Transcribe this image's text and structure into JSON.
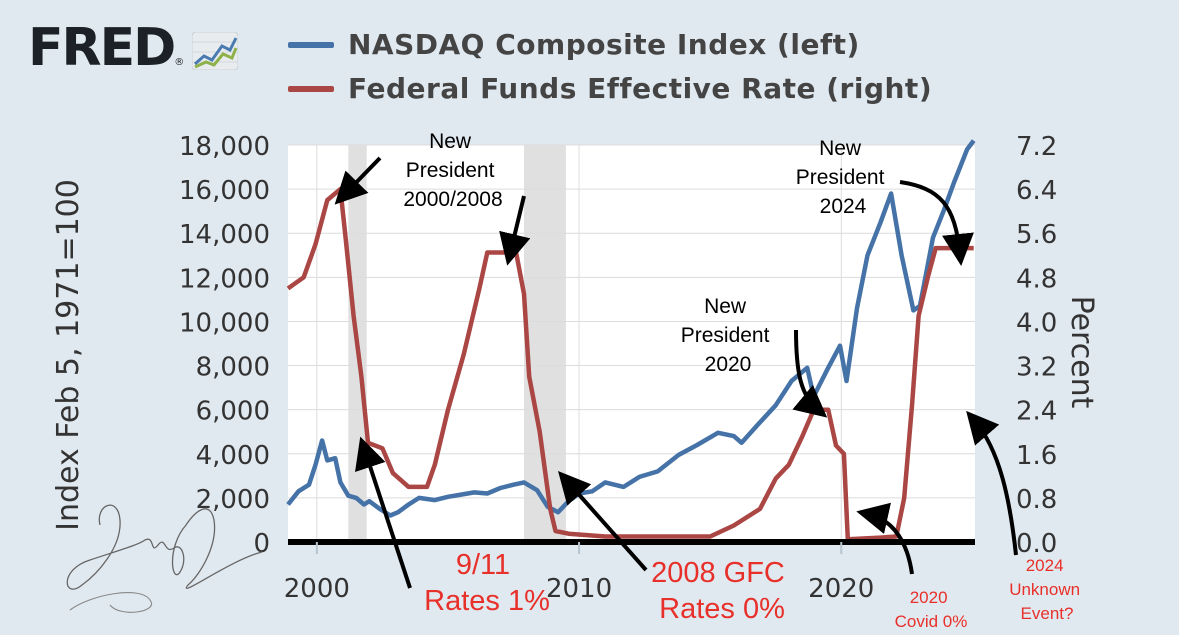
{
  "logo": {
    "text": "FRED",
    "registered": "®"
  },
  "colors": {
    "nasdaq": "#4572a7",
    "fedfunds": "#aa4643",
    "recession": "#e0e0e0",
    "annotation_red": "#e8302a"
  },
  "chart_data": {
    "type": "line",
    "x_range": [
      1998.9,
      2025.1
    ],
    "x_ticks": [
      "2000",
      "2010",
      "2020"
    ],
    "left_axis": {
      "label": "Index Feb 5, 1971=100",
      "range": [
        0,
        18000
      ],
      "ticks": [
        "18,000",
        "16,000",
        "14,000",
        "12,000",
        "10,000",
        "8,000",
        "6,000",
        "4,000",
        "2,000",
        "0"
      ]
    },
    "right_axis": {
      "label": "Percent",
      "range": [
        0,
        7.2
      ],
      "ticks": [
        "7.2",
        "6.4",
        "5.6",
        "4.8",
        "4.0",
        "3.2",
        "2.4",
        "1.6",
        "0.8",
        "0.0"
      ]
    },
    "recessions": [
      [
        2001.2,
        2001.9
      ],
      [
        2007.9,
        2009.5
      ]
    ],
    "series": [
      {
        "name": "NASDAQ Composite Index (left)",
        "axis": "left",
        "points": [
          [
            1998.9,
            1700
          ],
          [
            1999.3,
            2300
          ],
          [
            1999.7,
            2600
          ],
          [
            1999.95,
            3500
          ],
          [
            2000.2,
            4600
          ],
          [
            2000.4,
            3700
          ],
          [
            2000.7,
            3800
          ],
          [
            2000.9,
            2700
          ],
          [
            2001.2,
            2100
          ],
          [
            2001.5,
            2000
          ],
          [
            2001.8,
            1700
          ],
          [
            2002.0,
            1850
          ],
          [
            2002.4,
            1500
          ],
          [
            2002.8,
            1200
          ],
          [
            2003.1,
            1350
          ],
          [
            2003.5,
            1700
          ],
          [
            2003.9,
            2000
          ],
          [
            2004.5,
            1900
          ],
          [
            2005.0,
            2050
          ],
          [
            2005.5,
            2150
          ],
          [
            2006.0,
            2250
          ],
          [
            2006.5,
            2200
          ],
          [
            2007.0,
            2450
          ],
          [
            2007.5,
            2600
          ],
          [
            2007.9,
            2700
          ],
          [
            2008.4,
            2350
          ],
          [
            2008.8,
            1600
          ],
          [
            2009.2,
            1350
          ],
          [
            2009.6,
            1850
          ],
          [
            2010.0,
            2200
          ],
          [
            2010.5,
            2300
          ],
          [
            2011.0,
            2700
          ],
          [
            2011.7,
            2500
          ],
          [
            2012.3,
            2950
          ],
          [
            2013.0,
            3200
          ],
          [
            2013.8,
            3950
          ],
          [
            2014.5,
            4400
          ],
          [
            2015.3,
            4950
          ],
          [
            2015.9,
            4800
          ],
          [
            2016.2,
            4500
          ],
          [
            2016.8,
            5300
          ],
          [
            2017.5,
            6200
          ],
          [
            2018.1,
            7300
          ],
          [
            2018.7,
            7900
          ],
          [
            2018.95,
            6600
          ],
          [
            2019.5,
            7900
          ],
          [
            2019.95,
            8900
          ],
          [
            2020.2,
            7300
          ],
          [
            2020.6,
            10600
          ],
          [
            2021.0,
            13000
          ],
          [
            2021.5,
            14500
          ],
          [
            2021.9,
            15800
          ],
          [
            2022.3,
            13000
          ],
          [
            2022.75,
            10500
          ],
          [
            2023.0,
            10700
          ],
          [
            2023.5,
            13800
          ],
          [
            2023.9,
            15000
          ],
          [
            2024.3,
            16300
          ],
          [
            2024.8,
            17800
          ],
          [
            2025.05,
            18200
          ]
        ]
      },
      {
        "name": "Federal Funds Effective Rate (right)",
        "axis": "right",
        "points": [
          [
            1998.9,
            4.6
          ],
          [
            1999.5,
            4.8
          ],
          [
            1999.95,
            5.4
          ],
          [
            2000.4,
            6.2
          ],
          [
            2000.9,
            6.4
          ],
          [
            2001.1,
            5.5
          ],
          [
            2001.4,
            4.1
          ],
          [
            2001.7,
            3.0
          ],
          [
            2001.95,
            1.8
          ],
          [
            2002.5,
            1.7
          ],
          [
            2002.9,
            1.25
          ],
          [
            2003.5,
            1.0
          ],
          [
            2004.2,
            1.0
          ],
          [
            2004.5,
            1.4
          ],
          [
            2005.0,
            2.4
          ],
          [
            2005.6,
            3.4
          ],
          [
            2006.2,
            4.6
          ],
          [
            2006.5,
            5.25
          ],
          [
            2007.6,
            5.25
          ],
          [
            2007.9,
            4.5
          ],
          [
            2008.1,
            3.0
          ],
          [
            2008.5,
            2.0
          ],
          [
            2008.9,
            0.6
          ],
          [
            2009.1,
            0.2
          ],
          [
            2009.6,
            0.15
          ],
          [
            2011.0,
            0.1
          ],
          [
            2013.0,
            0.1
          ],
          [
            2015.0,
            0.1
          ],
          [
            2015.9,
            0.3
          ],
          [
            2016.9,
            0.6
          ],
          [
            2017.5,
            1.15
          ],
          [
            2018.0,
            1.4
          ],
          [
            2018.5,
            1.9
          ],
          [
            2018.95,
            2.4
          ],
          [
            2019.5,
            2.4
          ],
          [
            2019.8,
            1.75
          ],
          [
            2020.1,
            1.6
          ],
          [
            2020.25,
            0.05
          ],
          [
            2021.5,
            0.08
          ],
          [
            2022.1,
            0.1
          ],
          [
            2022.4,
            0.8
          ],
          [
            2022.7,
            2.5
          ],
          [
            2022.95,
            4.1
          ],
          [
            2023.3,
            4.8
          ],
          [
            2023.6,
            5.33
          ],
          [
            2024.7,
            5.33
          ],
          [
            2025.05,
            5.33
          ]
        ]
      }
    ]
  },
  "annotations": {
    "new_president_2000_2008": [
      "New",
      "President",
      "2000/2008"
    ],
    "new_president_2020": [
      "New",
      "President",
      "2020"
    ],
    "new_president_2024": [
      "New",
      "President",
      "2024"
    ],
    "nine_eleven": [
      "9/11",
      "Rates 1%"
    ],
    "gfc": [
      "2008 GFC",
      "Rates 0%"
    ],
    "covid": [
      "2020",
      "Covid 0%"
    ],
    "unknown": [
      "2024",
      "Unknown",
      "Event?"
    ]
  }
}
